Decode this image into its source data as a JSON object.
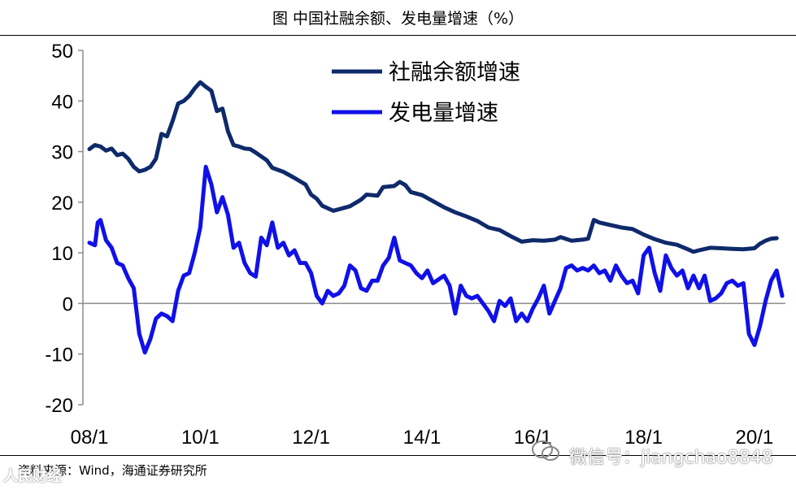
{
  "page": {
    "title": "图 中国社融余额、发电量增速（%）",
    "source": "资料来源：Wind，海通证券研究所",
    "watermark_left": "人民财经",
    "watermark_right": "微信号：jiangchao8848"
  },
  "chart_data": {
    "type": "line",
    "title": "图 中国社融余额、发电量增速（%）",
    "xlabel": "",
    "ylabel": "",
    "x_ticks": [
      "08/1",
      "10/1",
      "12/1",
      "14/1",
      "16/1",
      "18/1",
      "20/1"
    ],
    "y_ticks": [
      "50",
      "40",
      "30",
      "20",
      "10",
      "0",
      "-10",
      "-20"
    ],
    "ylim": [
      -20,
      50
    ],
    "xlim": [
      2008.0,
      2020.5
    ],
    "grid": false,
    "legend_position": "top-center",
    "series": [
      {
        "name": "社融余额增速",
        "color": "#0f2a6b",
        "points": [
          [
            2008.0,
            30.5
          ],
          [
            2008.1,
            31.3
          ],
          [
            2008.2,
            31.0
          ],
          [
            2008.3,
            30.2
          ],
          [
            2008.4,
            30.6
          ],
          [
            2008.5,
            29.3
          ],
          [
            2008.6,
            29.6
          ],
          [
            2008.7,
            28.6
          ],
          [
            2008.8,
            27.0
          ],
          [
            2008.9,
            26.1
          ],
          [
            2009.0,
            26.4
          ],
          [
            2009.1,
            27.0
          ],
          [
            2009.2,
            28.6
          ],
          [
            2009.3,
            33.5
          ],
          [
            2009.4,
            33.0
          ],
          [
            2009.5,
            36.0
          ],
          [
            2009.6,
            39.5
          ],
          [
            2009.7,
            40.0
          ],
          [
            2009.8,
            41.0
          ],
          [
            2009.9,
            42.5
          ],
          [
            2010.0,
            43.7
          ],
          [
            2010.1,
            42.8
          ],
          [
            2010.2,
            42.0
          ],
          [
            2010.3,
            38.0
          ],
          [
            2010.4,
            38.5
          ],
          [
            2010.5,
            34.0
          ],
          [
            2010.6,
            31.3
          ],
          [
            2010.7,
            31.0
          ],
          [
            2010.8,
            30.6
          ],
          [
            2010.9,
            30.5
          ],
          [
            2011.0,
            29.8
          ],
          [
            2011.2,
            28.3
          ],
          [
            2011.3,
            26.8
          ],
          [
            2011.5,
            26.0
          ],
          [
            2011.7,
            24.8
          ],
          [
            2011.9,
            23.5
          ],
          [
            2012.0,
            21.5
          ],
          [
            2012.1,
            20.7
          ],
          [
            2012.2,
            19.3
          ],
          [
            2012.4,
            18.3
          ],
          [
            2012.5,
            18.6
          ],
          [
            2012.7,
            19.2
          ],
          [
            2012.9,
            20.5
          ],
          [
            2013.0,
            21.5
          ],
          [
            2013.2,
            21.3
          ],
          [
            2013.3,
            23.0
          ],
          [
            2013.5,
            23.2
          ],
          [
            2013.6,
            24.0
          ],
          [
            2013.7,
            23.4
          ],
          [
            2013.8,
            22.0
          ],
          [
            2014.0,
            21.4
          ],
          [
            2014.2,
            20.2
          ],
          [
            2014.4,
            19.0
          ],
          [
            2014.6,
            18.0
          ],
          [
            2014.8,
            17.2
          ],
          [
            2015.0,
            16.3
          ],
          [
            2015.2,
            15.0
          ],
          [
            2015.4,
            14.5
          ],
          [
            2015.6,
            13.3
          ],
          [
            2015.8,
            12.2
          ],
          [
            2016.0,
            12.5
          ],
          [
            2016.2,
            12.4
          ],
          [
            2016.4,
            12.6
          ],
          [
            2016.5,
            13.1
          ],
          [
            2016.7,
            12.4
          ],
          [
            2016.9,
            12.6
          ],
          [
            2017.0,
            12.8
          ],
          [
            2017.1,
            16.5
          ],
          [
            2017.2,
            16.0
          ],
          [
            2017.4,
            15.5
          ],
          [
            2017.6,
            15.0
          ],
          [
            2017.8,
            14.7
          ],
          [
            2018.0,
            13.6
          ],
          [
            2018.2,
            12.7
          ],
          [
            2018.4,
            12.0
          ],
          [
            2018.6,
            11.6
          ],
          [
            2018.8,
            10.7
          ],
          [
            2018.9,
            10.2
          ],
          [
            2019.0,
            10.5
          ],
          [
            2019.2,
            11.0
          ],
          [
            2019.4,
            10.9
          ],
          [
            2019.6,
            10.8
          ],
          [
            2019.8,
            10.7
          ],
          [
            2020.0,
            10.9
          ],
          [
            2020.1,
            11.8
          ],
          [
            2020.2,
            12.4
          ],
          [
            2020.3,
            12.8
          ],
          [
            2020.4,
            12.9
          ]
        ]
      },
      {
        "name": "发电量增速",
        "color": "#1010e8",
        "points": [
          [
            2008.0,
            12.0
          ],
          [
            2008.1,
            11.5
          ],
          [
            2008.15,
            16.0
          ],
          [
            2008.2,
            16.5
          ],
          [
            2008.3,
            12.5
          ],
          [
            2008.4,
            11.0
          ],
          [
            2008.5,
            8.0
          ],
          [
            2008.6,
            7.5
          ],
          [
            2008.7,
            5.0
          ],
          [
            2008.8,
            3.0
          ],
          [
            2008.9,
            -6.0
          ],
          [
            2009.0,
            -9.7
          ],
          [
            2009.1,
            -7.0
          ],
          [
            2009.2,
            -3.0
          ],
          [
            2009.3,
            -2.0
          ],
          [
            2009.4,
            -2.5
          ],
          [
            2009.5,
            -3.5
          ],
          [
            2009.6,
            2.5
          ],
          [
            2009.7,
            5.5
          ],
          [
            2009.8,
            6.0
          ],
          [
            2009.9,
            10.0
          ],
          [
            2010.0,
            15.0
          ],
          [
            2010.1,
            27.0
          ],
          [
            2010.2,
            23.5
          ],
          [
            2010.3,
            18.0
          ],
          [
            2010.4,
            21.0
          ],
          [
            2010.5,
            17.5
          ],
          [
            2010.6,
            11.0
          ],
          [
            2010.7,
            12.0
          ],
          [
            2010.8,
            8.0
          ],
          [
            2010.9,
            6.0
          ],
          [
            2011.0,
            5.3
          ],
          [
            2011.1,
            13.0
          ],
          [
            2011.2,
            11.5
          ],
          [
            2011.3,
            16.0
          ],
          [
            2011.4,
            11.0
          ],
          [
            2011.5,
            12.0
          ],
          [
            2011.6,
            9.5
          ],
          [
            2011.7,
            10.5
          ],
          [
            2011.8,
            8.0
          ],
          [
            2011.9,
            8.0
          ],
          [
            2012.0,
            6.0
          ],
          [
            2012.1,
            1.5
          ],
          [
            2012.2,
            0.0
          ],
          [
            2012.3,
            2.5
          ],
          [
            2012.4,
            1.5
          ],
          [
            2012.5,
            2.0
          ],
          [
            2012.6,
            3.5
          ],
          [
            2012.7,
            7.5
          ],
          [
            2012.8,
            6.5
          ],
          [
            2012.9,
            3.0
          ],
          [
            2013.0,
            2.5
          ],
          [
            2013.1,
            4.5
          ],
          [
            2013.2,
            4.5
          ],
          [
            2013.3,
            7.5
          ],
          [
            2013.4,
            9.0
          ],
          [
            2013.5,
            13.0
          ],
          [
            2013.6,
            8.5
          ],
          [
            2013.7,
            8.0
          ],
          [
            2013.8,
            7.5
          ],
          [
            2013.9,
            6.0
          ],
          [
            2014.0,
            5.0
          ],
          [
            2014.1,
            6.5
          ],
          [
            2014.2,
            4.0
          ],
          [
            2014.4,
            5.5
          ],
          [
            2014.5,
            3.5
          ],
          [
            2014.6,
            -2.0
          ],
          [
            2014.7,
            3.5
          ],
          [
            2014.8,
            1.5
          ],
          [
            2014.9,
            1.0
          ],
          [
            2015.0,
            1.5
          ],
          [
            2015.1,
            0.0
          ],
          [
            2015.2,
            -1.5
          ],
          [
            2015.3,
            -3.5
          ],
          [
            2015.4,
            0.5
          ],
          [
            2015.5,
            -0.5
          ],
          [
            2015.6,
            1.0
          ],
          [
            2015.7,
            -3.5
          ],
          [
            2015.8,
            -2.0
          ],
          [
            2015.9,
            -3.5
          ],
          [
            2016.0,
            -1.0
          ],
          [
            2016.1,
            1.0
          ],
          [
            2016.2,
            3.5
          ],
          [
            2016.3,
            -2.0
          ],
          [
            2016.4,
            0.5
          ],
          [
            2016.5,
            3.0
          ],
          [
            2016.6,
            7.0
          ],
          [
            2016.7,
            7.5
          ],
          [
            2016.8,
            6.5
          ],
          [
            2016.9,
            7.0
          ],
          [
            2017.0,
            6.5
          ],
          [
            2017.1,
            7.5
          ],
          [
            2017.2,
            6.0
          ],
          [
            2017.3,
            6.5
          ],
          [
            2017.4,
            4.5
          ],
          [
            2017.5,
            7.5
          ],
          [
            2017.6,
            5.5
          ],
          [
            2017.7,
            4.0
          ],
          [
            2017.8,
            4.5
          ],
          [
            2017.9,
            2.0
          ],
          [
            2018.0,
            9.5
          ],
          [
            2018.1,
            11.0
          ],
          [
            2018.2,
            6.0
          ],
          [
            2018.3,
            2.5
          ],
          [
            2018.4,
            9.5
          ],
          [
            2018.5,
            7.0
          ],
          [
            2018.6,
            5.5
          ],
          [
            2018.7,
            6.5
          ],
          [
            2018.8,
            3.0
          ],
          [
            2018.9,
            5.5
          ],
          [
            2019.0,
            3.0
          ],
          [
            2019.1,
            5.5
          ],
          [
            2019.2,
            0.5
          ],
          [
            2019.3,
            1.0
          ],
          [
            2019.4,
            2.0
          ],
          [
            2019.5,
            4.0
          ],
          [
            2019.6,
            4.5
          ],
          [
            2019.7,
            3.5
          ],
          [
            2019.8,
            4.0
          ],
          [
            2019.9,
            -6.0
          ],
          [
            2020.0,
            -8.2
          ],
          [
            2020.1,
            -4.5
          ],
          [
            2020.2,
            0.5
          ],
          [
            2020.3,
            4.5
          ],
          [
            2020.4,
            6.5
          ],
          [
            2020.5,
            1.5
          ]
        ]
      }
    ]
  }
}
